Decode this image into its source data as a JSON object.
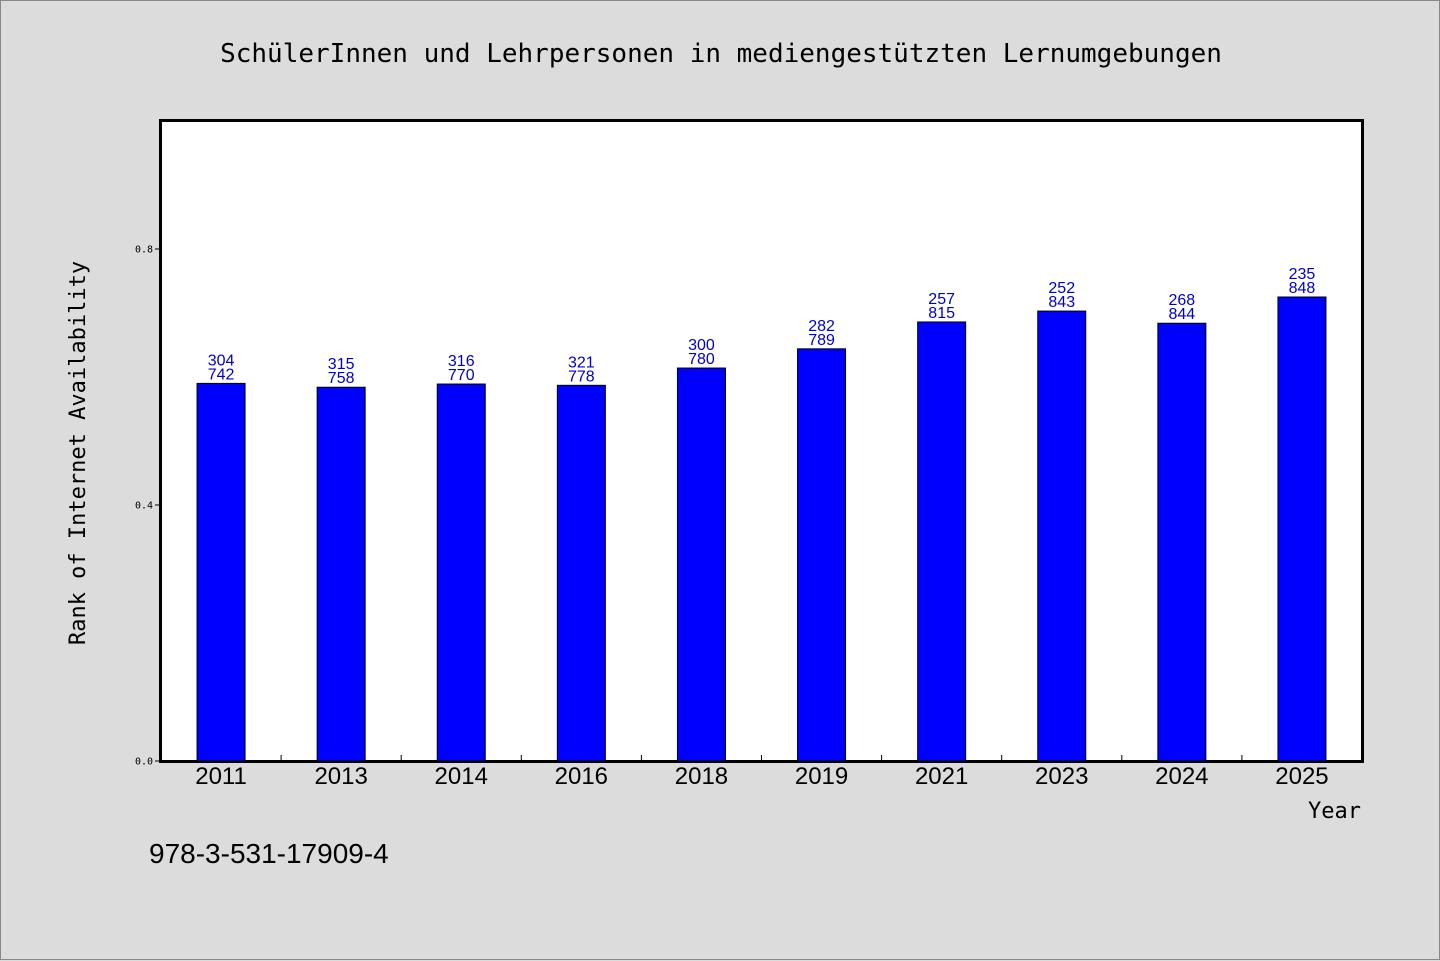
{
  "chart_data": {
    "type": "bar",
    "title": "SchülerInnen und Lehrpersonen in mediengestützten Lernumgebungen",
    "xlabel": "Year",
    "ylabel": "Rank of Internet Availability",
    "categories": [
      "2011",
      "2013",
      "2014",
      "2016",
      "2018",
      "2019",
      "2021",
      "2023",
      "2024",
      "2025"
    ],
    "values": [
      0.59,
      0.584,
      0.589,
      0.587,
      0.614,
      0.644,
      0.686,
      0.703,
      0.684,
      0.725
    ],
    "bar_labels_top": [
      "304",
      "315",
      "316",
      "321",
      "300",
      "282",
      "257",
      "252",
      "268",
      "235"
    ],
    "bar_labels_bottom": [
      "742",
      "758",
      "770",
      "778",
      "780",
      "789",
      "815",
      "843",
      "844",
      "848"
    ],
    "ylim": [
      0,
      1.0
    ],
    "yticks": [
      "0.0",
      "0.4",
      "0.8"
    ],
    "ytick_values": [
      0,
      0.4,
      0.8
    ],
    "bar_color": "#0000ff",
    "label_color": "#0000cc",
    "grid": false
  },
  "footer": {
    "isbn": "978-3-531-17909-4"
  }
}
